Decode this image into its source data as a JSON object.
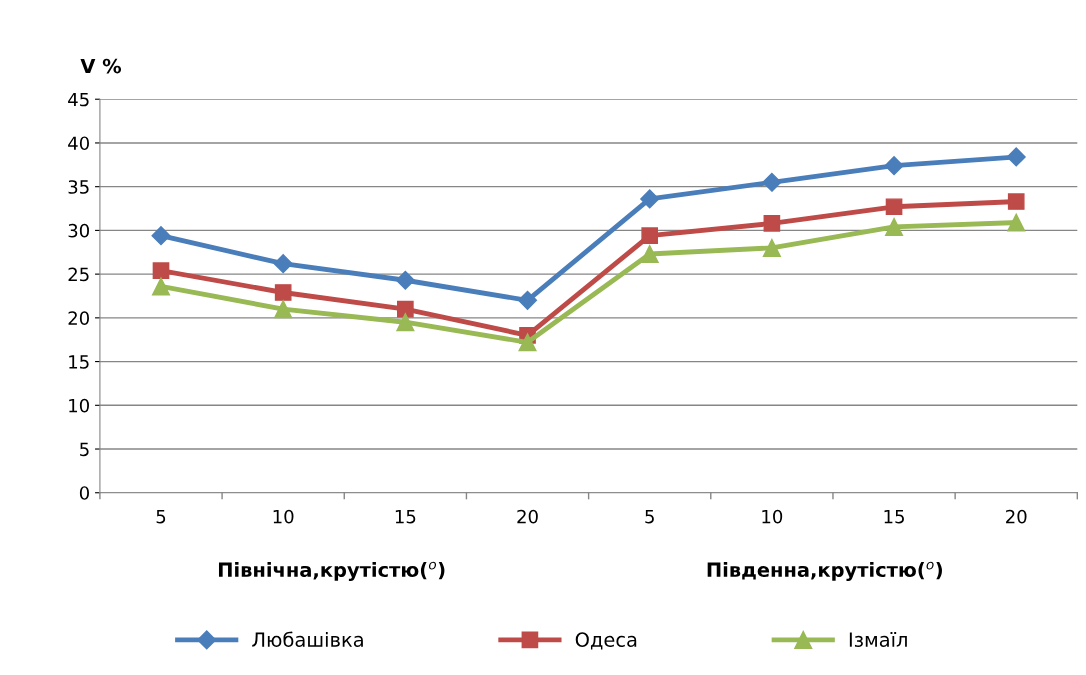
{
  "chart_data": {
    "type": "line",
    "ylabel": "V %",
    "categories": [
      "5",
      "10",
      "15",
      "20",
      "5",
      "10",
      "15",
      "20"
    ],
    "annotations": [
      "Північна,крутістю($^{о}$)",
      "Південна,крутістю($^{о}$)"
    ],
    "series": [
      {
        "name": "Любашівка",
        "color": "#4a7ebb",
        "marker": "diamond",
        "values": [
          29.4,
          26.2,
          24.3,
          22.0,
          33.6,
          35.5,
          37.4,
          38.4
        ]
      },
      {
        "name": "Одеса",
        "color": "#be4b48",
        "marker": "square",
        "values": [
          25.4,
          22.9,
          21.0,
          18.0,
          29.4,
          30.8,
          32.7,
          33.3
        ]
      },
      {
        "name": "Ізмаїл",
        "color": "#98b954",
        "marker": "triangle",
        "values": [
          23.6,
          21.0,
          19.5,
          17.2,
          27.3,
          28.0,
          30.4,
          30.9
        ]
      }
    ],
    "ylim": [
      0,
      45
    ],
    "yticks": [
      0,
      5,
      10,
      15,
      20,
      25,
      30,
      35,
      40,
      45
    ],
    "grid": "y",
    "legend": "bottom",
    "line_style": "solid"
  }
}
